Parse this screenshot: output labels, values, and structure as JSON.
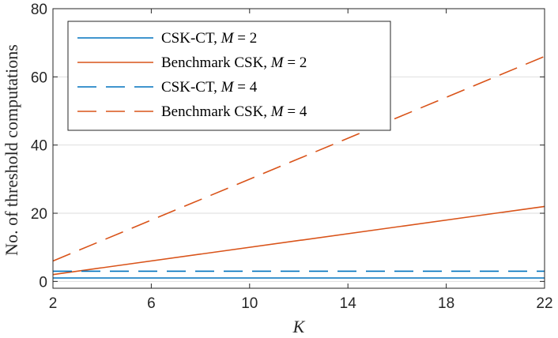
{
  "chart_data": {
    "type": "line",
    "title": "",
    "xlabel": "K",
    "ylabel": "No. of threshold computations",
    "xlim": [
      2,
      22
    ],
    "ylim": [
      -2,
      80
    ],
    "xticks": [
      2,
      6,
      10,
      14,
      18,
      22
    ],
    "yticks": [
      0,
      20,
      40,
      60,
      80
    ],
    "grid": "horizontal",
    "legend_position": "top-left",
    "series": [
      {
        "name": "CSK-CT, M = 2",
        "label_text": "CSK-CT, ",
        "label_var": "M",
        "label_eq": " = 2",
        "color": "#0072BD",
        "style": "solid",
        "x": [
          2,
          22
        ],
        "y": [
          1,
          1
        ]
      },
      {
        "name": "Benchmark CSK, M = 2",
        "label_text": "Benchmark CSK, ",
        "label_var": "M",
        "label_eq": " = 2",
        "color": "#D95319",
        "style": "solid",
        "x": [
          2,
          22
        ],
        "y": [
          2,
          22
        ]
      },
      {
        "name": "CSK-CT, M = 4",
        "label_text": "CSK-CT, ",
        "label_var": "M",
        "label_eq": " = 4",
        "color": "#0072BD",
        "style": "dashed",
        "x": [
          2,
          22
        ],
        "y": [
          3,
          3
        ]
      },
      {
        "name": "Benchmark CSK, M = 4",
        "label_text": "Benchmark CSK, ",
        "label_var": "M",
        "label_eq": " = 4",
        "color": "#D95319",
        "style": "dashed",
        "x": [
          2,
          22
        ],
        "y": [
          6,
          66
        ]
      }
    ]
  }
}
